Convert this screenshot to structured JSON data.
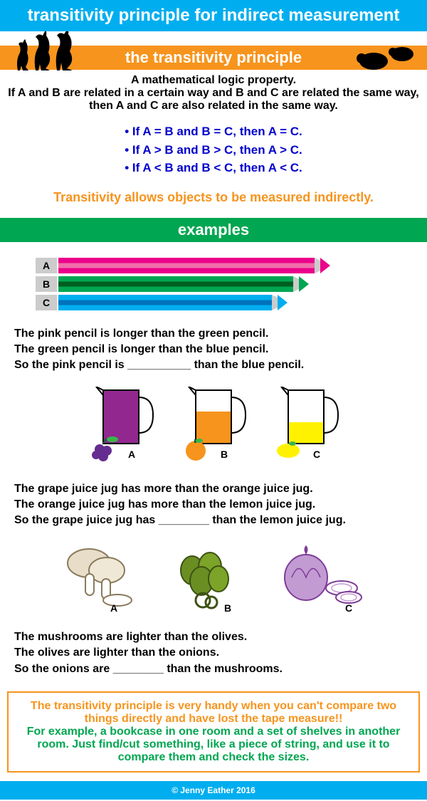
{
  "header": "transitivity principle for indirect measurement",
  "section1_title": "the transitivity principle",
  "intro_line1": "A mathematical logic property.",
  "intro_line2": "If A and B are related in a certain way and B and C are related the same way, then A and C are also related in the same way.",
  "bullets": [
    "• If A = B and B = C, then A = C.",
    "• If A > B and B > C, then A > C.",
    "• If A < B and B < C, then A < C."
  ],
  "orange_note": "Transitivity allows objects to be measured indirectly.",
  "section2_title": "examples",
  "pencils": {
    "labels": [
      "A",
      "B",
      "C"
    ],
    "widths": [
      360,
      330,
      300
    ],
    "body_colors": [
      "#ec008c",
      "#00a651",
      "#00aeef"
    ],
    "accent_colors": [
      "#f06eaa",
      "#005e20",
      "#0072bc"
    ],
    "tip_colors": [
      "#ec008c",
      "#00a651",
      "#00aeef"
    ]
  },
  "example1": [
    "The pink pencil is longer than the green pencil.",
    "The green pencil is longer than the blue pencil.",
    "So the pink pencil is __________ than the blue pencil."
  ],
  "jugs": {
    "labels": [
      "A",
      "B",
      "C"
    ],
    "fill_heights": [
      75,
      45,
      30
    ],
    "fill_colors": [
      "#92278f",
      "#f7941d",
      "#fff200"
    ],
    "fruit_colors": [
      "#662d91",
      "#f7941d",
      "#fff200"
    ]
  },
  "example2": [
    "The grape juice jug has more than the orange juice jug.",
    "The orange juice jug has more than the lemon juice jug.",
    "So the grape juice jug has ________ than the lemon juice jug."
  ],
  "foods": {
    "labels": [
      "A",
      "B",
      "C"
    ],
    "colors": [
      "#d1c7b7",
      "#6b8e23",
      "#9b59b6"
    ]
  },
  "example3": [
    "The mushrooms are lighter than the olives.",
    "The olives are lighter than the onions.",
    "So the onions are ________ than the mushrooms."
  ],
  "footer1": "The transitivity principle is very handy when you can't compare two things directly and have lost the tape measure!!",
  "footer2": "For example, a bookcase in one room and a set of shelves in another room. Just find/cut something, like a piece of string, and use it to compare them and check the sizes.",
  "copyright": "© Jenny Eather 2016"
}
